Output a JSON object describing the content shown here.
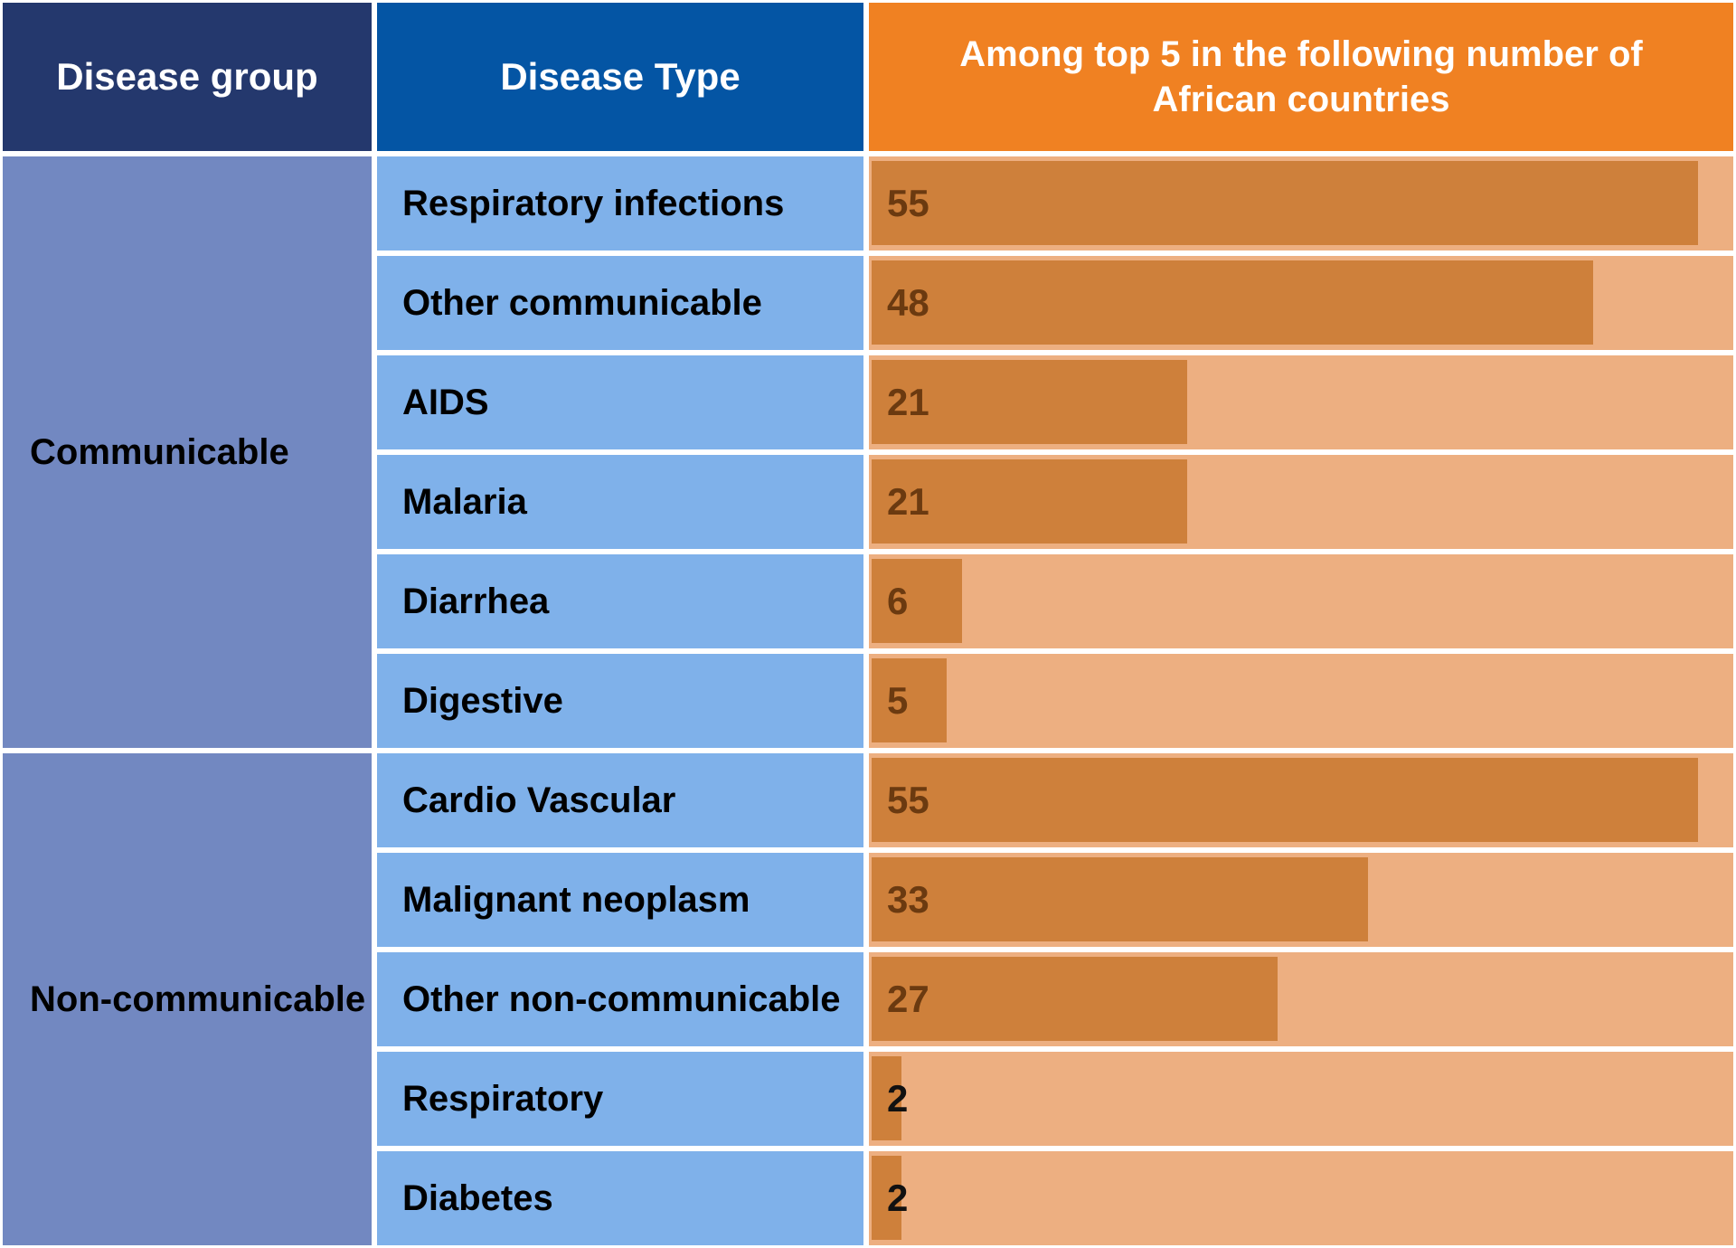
{
  "palette": {
    "background": "#FFFFFF",
    "navy_header": "#24386D",
    "blue_header": "#0455A4",
    "orange_header": "#F08122",
    "group_cell_blue": "#7288C1",
    "type_cell_blue": "#7FB1EA",
    "bar_track": "#EDAF81",
    "bar_fill": "#CE803B",
    "header_text": "#FFFFFF",
    "label_text": "#000000",
    "value_text_brown": "#6B3A10",
    "value_text_black": "#111111"
  },
  "headers": {
    "disease_group": "Disease group",
    "disease_type": "Disease Type",
    "bar_column_line1": "Among top 5 in the following number of",
    "bar_column_line2": "African countries"
  },
  "chart_data": {
    "type": "bar",
    "orientation": "horizontal",
    "title": "Among top 5 in the following number of African countries",
    "scale_max": 57.5,
    "categories": [
      "Respiratory infections",
      "Other communicable",
      "AIDS",
      "Malaria",
      "Diarrhea",
      "Digestive",
      "Cardio Vascular",
      "Malignant neoplasm",
      "Other non-communicable",
      "Respiratory",
      "Diabetes"
    ],
    "values": [
      55,
      48,
      21,
      21,
      6,
      5,
      55,
      33,
      27,
      2,
      2
    ],
    "groups": [
      {
        "label": "Communicable",
        "rows": [
          {
            "label": "Respiratory infections",
            "value": 55,
            "value_color": "#6B3A10"
          },
          {
            "label": "Other communicable",
            "value": 48,
            "value_color": "#6B3A10"
          },
          {
            "label": "AIDS",
            "value": 21,
            "value_color": "#6B3A10"
          },
          {
            "label": "Malaria",
            "value": 21,
            "value_color": "#6B3A10"
          },
          {
            "label": "Diarrhea",
            "value": 6,
            "value_color": "#6B3A10"
          },
          {
            "label": "Digestive",
            "value": 5,
            "value_color": "#6B3A10"
          }
        ]
      },
      {
        "label": "Non-communicable",
        "rows": [
          {
            "label": "Cardio Vascular",
            "value": 55,
            "value_color": "#6B3A10"
          },
          {
            "label": "Malignant neoplasm",
            "value": 33,
            "value_color": "#6B3A10"
          },
          {
            "label": "Other non-communicable",
            "value": 27,
            "value_color": "#6B3A10"
          },
          {
            "label": "Respiratory",
            "value": 2,
            "value_color": "#111111"
          },
          {
            "label": "Diabetes",
            "value": 2,
            "value_color": "#111111"
          }
        ]
      }
    ]
  }
}
